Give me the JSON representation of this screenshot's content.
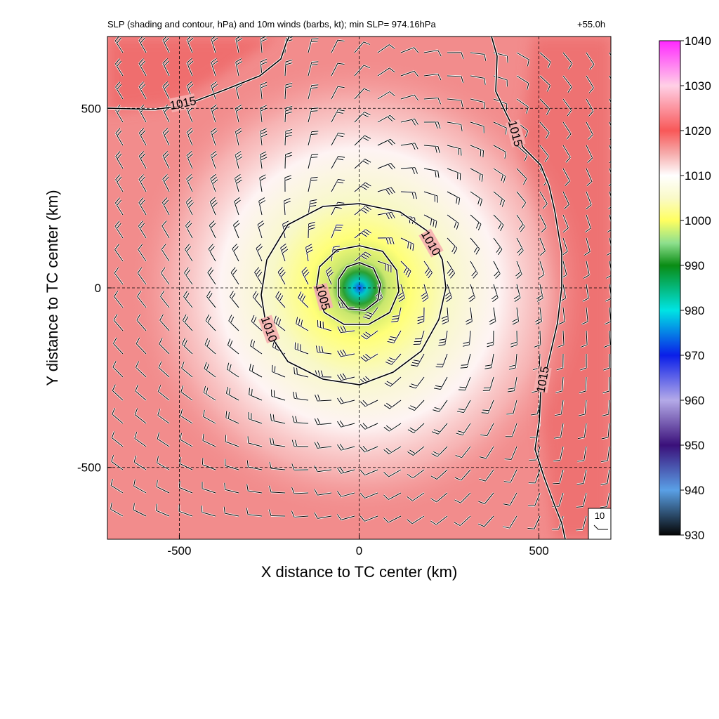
{
  "title_left": "SLP (shading and contour, hPa) and 10m winds (barbs, kt); min SLP= 974.16hPa",
  "title_right": "+55.0h",
  "chart_data": {
    "type": "heatmap",
    "title": "SLP (shading and contour, hPa) and 10m winds (barbs, kt); min SLP= 974.16hPa",
    "forecast_time": "+55.0h",
    "xlabel": "X distance to TC center (km)",
    "ylabel": "Y distance to TC center (km)",
    "xlim": [
      -700,
      700
    ],
    "ylim": [
      -700,
      700
    ],
    "xticks": [
      -500,
      0,
      500
    ],
    "yticks": [
      500,
      0,
      -500
    ],
    "grid": "dashed",
    "min_slp_hPa": 974.16,
    "center": [
      0,
      0
    ],
    "contour_labels": [
      {
        "text": "1015",
        "x": -490,
        "y": 515,
        "rot": -12
      },
      {
        "text": "1015",
        "x": 435,
        "y": 430,
        "rot": 75
      },
      {
        "text": "1015",
        "x": 510,
        "y": -255,
        "rot": -80
      },
      {
        "text": "1010",
        "x": 200,
        "y": 125,
        "rot": 60
      },
      {
        "text": "1010",
        "x": -250,
        "y": -115,
        "rot": 70
      },
      {
        "text": "1005",
        "x": -100,
        "y": -25,
        "rot": 75
      }
    ],
    "wind_barb_reference": "10",
    "colorbar": {
      "ticks": [
        1040,
        1030,
        1020,
        1010,
        1000,
        990,
        980,
        970,
        960,
        950,
        940,
        930
      ],
      "stops": [
        {
          "v": 930,
          "c": "#050505"
        },
        {
          "v": 940,
          "c": "#5aa0e6"
        },
        {
          "v": 950,
          "c": "#3a107a"
        },
        {
          "v": 960,
          "c": "#b4aae8"
        },
        {
          "v": 970,
          "c": "#0a1ee8"
        },
        {
          "v": 980,
          "c": "#00e4e4"
        },
        {
          "v": 990,
          "c": "#0a8c14"
        },
        {
          "v": 995,
          "c": "#8ee08e"
        },
        {
          "v": 1000,
          "c": "#ffff60"
        },
        {
          "v": 1005,
          "c": "#fafac8"
        },
        {
          "v": 1010,
          "c": "#ffffff"
        },
        {
          "v": 1015,
          "c": "#f6aaaa"
        },
        {
          "v": 1020,
          "c": "#f85858"
        },
        {
          "v": 1030,
          "c": "#ffd0e6"
        },
        {
          "v": 1040,
          "c": "#ff28ff"
        }
      ]
    }
  }
}
